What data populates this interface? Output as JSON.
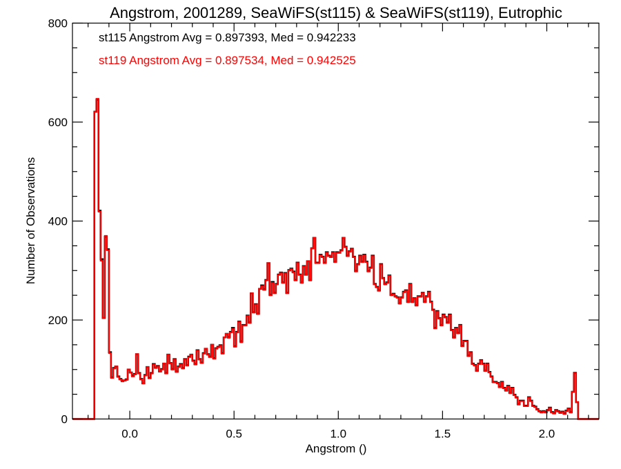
{
  "chart_data": {
    "type": "line",
    "style": "histogram-step",
    "title": "Angstrom, 2001289, SeaWiFS(st115) & SeaWiFS(st119), Eutrophic",
    "xlabel": "Angstrom ()",
    "ylabel": "Number of Observations",
    "xlim": [
      -0.275,
      2.25
    ],
    "ylim": [
      0,
      800
    ],
    "xticks": [
      0.0,
      0.5,
      1.0,
      1.5,
      2.0
    ],
    "xtick_labels": [
      "0.0",
      "0.5",
      "1.0",
      "1.5",
      "2.0"
    ],
    "yticks": [
      0,
      200,
      400,
      600,
      800
    ],
    "ytick_labels": [
      "0",
      "200",
      "400",
      "600",
      "800"
    ],
    "grid": false,
    "bin_start": -0.17,
    "bin_width": 0.01,
    "annotations": [
      {
        "text": "st115 Angstrom Avg = 0.897393, Med = 0.942233",
        "color": "#000000"
      },
      {
        "text": "st119 Angstrom Avg = 0.897534, Med = 0.942525",
        "color": "#ff0000"
      }
    ],
    "series": [
      {
        "name": "st115",
        "color": "#000000",
        "values": [
          621,
          645,
          421,
          323,
          204,
          368,
          343,
          135,
          84,
          103,
          106,
          86,
          81,
          78,
          78,
          80,
          100,
          94,
          88,
          91,
          131,
          93,
          81,
          72,
          89,
          105,
          83,
          93,
          111,
          104,
          107,
          96,
          101,
          112,
          93,
          130,
          113,
          101,
          121,
          96,
          106,
          111,
          103,
          121,
          109,
          126,
          130,
          118,
          111,
          139,
          121,
          114,
          133,
          142,
          131,
          126,
          150,
          123,
          143,
          146,
          149,
          133,
          165,
          172,
          166,
          176,
          184,
          147,
          176,
          197,
          157,
          190,
          190,
          209,
          195,
          254,
          216,
          232,
          213,
          263,
          270,
          262,
          281,
          315,
          251,
          277,
          255,
          273,
          292,
          296,
          276,
          295,
          255,
          301,
          304,
          298,
          281,
          316,
          292,
          276,
          309,
          292,
          319,
          281,
          345,
          366,
          316,
          316,
          332,
          328,
          316,
          337,
          330,
          328,
          337,
          318,
          337,
          336,
          341,
          366,
          348,
          330,
          339,
          344,
          328,
          299,
          313,
          330,
          318,
          332,
          318,
          299,
          306,
          330,
          273,
          267,
          260,
          313,
          285,
          273,
          276,
          290,
          251,
          253,
          248,
          246,
          234,
          246,
          257,
          260,
          237,
          273,
          237,
          244,
          230,
          248,
          248,
          255,
          237,
          248,
          257,
          237,
          221,
          184,
          218,
          204,
          190,
          211,
          206,
          195,
          211,
          180,
          165,
          184,
          174,
          190,
          148,
          158,
          158,
          128,
          135,
          112,
          109,
          98,
          112,
          119,
          112,
          98,
          112,
          95,
          86,
          75,
          75,
          73,
          65,
          75,
          63,
          58,
          67,
          53,
          63,
          49,
          44,
          30,
          37,
          37,
          27,
          27,
          44,
          37,
          27,
          25,
          20,
          16,
          14,
          16,
          14,
          18,
          23,
          14,
          12,
          18,
          16,
          13,
          15,
          11,
          17,
          21,
          14,
          55,
          93,
          34
        ]
      },
      {
        "name": "st119",
        "color": "#ff0000",
        "values": [
          621,
          647,
          419,
          320,
          204,
          370,
          341,
          133,
          83,
          102,
          106,
          85,
          80,
          76,
          78,
          79,
          100,
          94,
          86,
          90,
          131,
          92,
          80,
          72,
          88,
          105,
          82,
          92,
          110,
          103,
          106,
          96,
          100,
          112,
          92,
          130,
          112,
          100,
          120,
          95,
          105,
          110,
          102,
          120,
          108,
          125,
          130,
          117,
          110,
          138,
          120,
          113,
          132,
          142,
          130,
          125,
          150,
          122,
          142,
          145,
          148,
          132,
          165,
          172,
          164,
          175,
          182,
          146,
          175,
          196,
          155,
          189,
          189,
          208,
          194,
          254,
          215,
          231,
          212,
          263,
          268,
          261,
          280,
          315,
          250,
          275,
          254,
          272,
          291,
          295,
          275,
          294,
          254,
          300,
          303,
          296,
          280,
          315,
          291,
          275,
          308,
          291,
          319,
          280,
          345,
          366,
          315,
          315,
          331,
          327,
          315,
          336,
          329,
          327,
          336,
          317,
          336,
          336,
          340,
          366,
          347,
          329,
          338,
          343,
          327,
          298,
          312,
          329,
          317,
          331,
          317,
          298,
          305,
          329,
          272,
          266,
          259,
          312,
          284,
          272,
          275,
          289,
          250,
          252,
          247,
          245,
          233,
          245,
          256,
          259,
          236,
          272,
          236,
          243,
          229,
          247,
          247,
          254,
          236,
          247,
          256,
          236,
          220,
          183,
          217,
          203,
          189,
          210,
          205,
          194,
          210,
          179,
          164,
          183,
          173,
          189,
          147,
          157,
          157,
          127,
          134,
          111,
          108,
          97,
          111,
          118,
          111,
          97,
          111,
          94,
          85,
          74,
          74,
          72,
          64,
          74,
          62,
          57,
          66,
          52,
          62,
          48,
          43,
          29,
          36,
          36,
          26,
          26,
          43,
          36,
          26,
          24,
          19,
          15,
          13,
          15,
          13,
          17,
          22,
          13,
          11,
          17,
          15,
          12,
          14,
          10,
          16,
          20,
          13,
          55,
          94,
          34
        ]
      }
    ]
  }
}
